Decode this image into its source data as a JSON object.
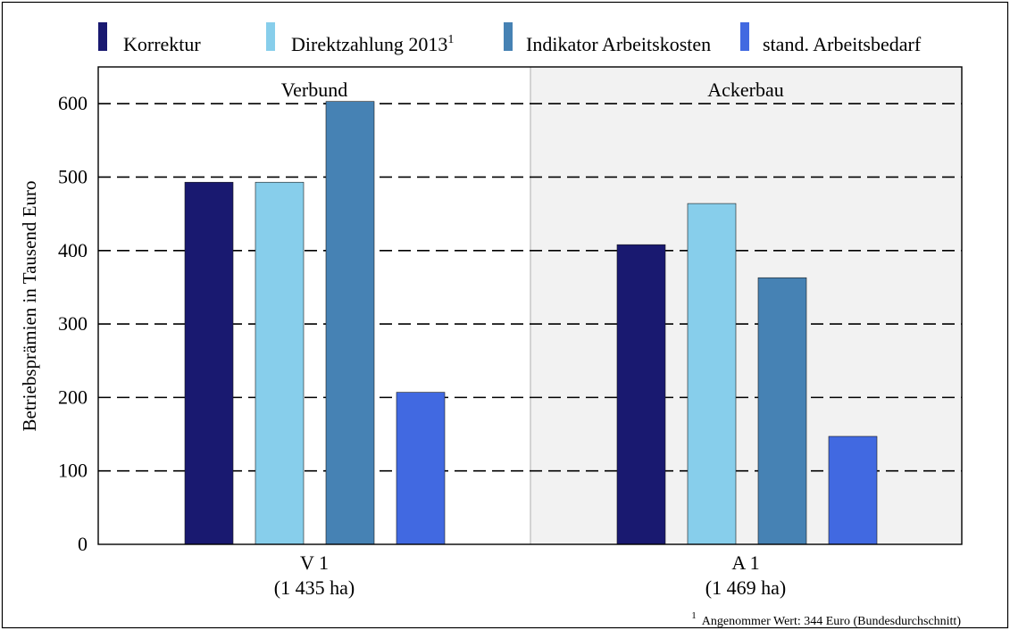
{
  "chart_data": {
    "type": "bar",
    "ylabel": "Betriebsprämien in Tausend Euro",
    "ylim": [
      0,
      650
    ],
    "yticks": [
      0,
      100,
      200,
      300,
      400,
      500,
      600
    ],
    "grid": "dashed horizontal",
    "legend_position": "top",
    "panels": [
      {
        "title": "Verbund",
        "category": "V 1",
        "sublabel": "(1 435 ha)"
      },
      {
        "title": "Ackerbau",
        "category": "A 1",
        "sublabel": "(1 469 ha)"
      }
    ],
    "series": [
      {
        "name": "Korrektur",
        "color": "#191970",
        "values": [
          493,
          408
        ]
      },
      {
        "name": "Direktzahlung 2013",
        "name_sup": "1",
        "color": "#87CEEB",
        "values": [
          493,
          464
        ]
      },
      {
        "name": "Indikator Arbeitskosten",
        "color": "#4682B4",
        "values": [
          603,
          363
        ]
      },
      {
        "name": "stand. Arbeitsbedarf",
        "color": "#4169E1",
        "values": [
          207,
          147
        ]
      }
    ],
    "footnote": {
      "marker": "1",
      "text": "Angenommer Wert: 344 Euro (Bundesdurchschnitt)"
    }
  }
}
